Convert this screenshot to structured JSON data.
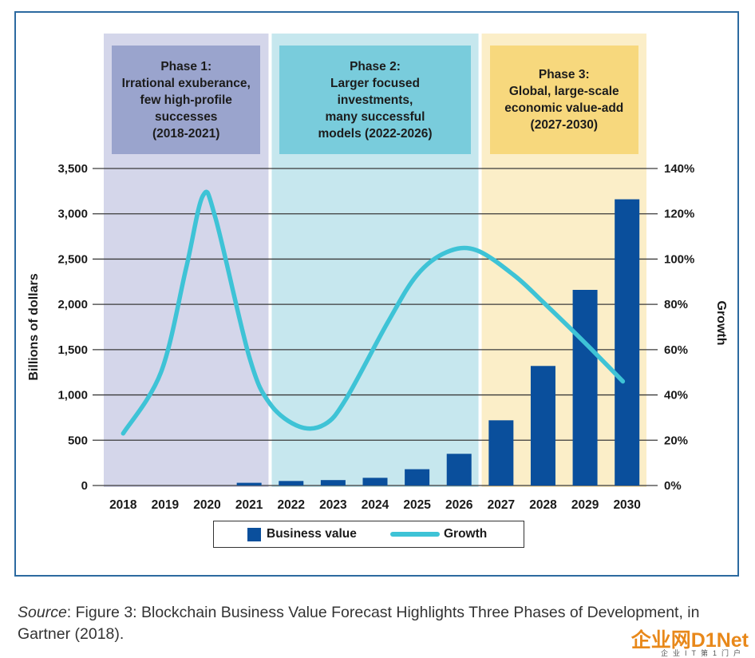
{
  "chart_data": {
    "type": "bar",
    "categories": [
      "2018",
      "2019",
      "2020",
      "2021",
      "2022",
      "2023",
      "2024",
      "2025",
      "2026",
      "2027",
      "2028",
      "2029",
      "2030"
    ],
    "series": [
      {
        "name": "Business value",
        "type": "bar",
        "axis": "left",
        "values": [
          0,
          0,
          0,
          30,
          50,
          60,
          85,
          180,
          350,
          720,
          1320,
          2160,
          3160
        ]
      },
      {
        "name": "Growth",
        "type": "line",
        "axis": "right",
        "smooth": true,
        "x": [
          2018,
          2018.9,
          2019.5,
          2019.9,
          2020.2,
          2021.0,
          2021.5,
          2022.2,
          2022.8,
          2023.3,
          2024.3,
          2025.0,
          2025.7,
          2026.4,
          2027.3,
          2028.0,
          2029.0,
          2029.9
        ],
        "values": [
          23,
          50,
          96,
          128,
          118,
          57,
          36,
          26,
          27,
          38,
          72,
          93,
          103,
          104,
          93,
          81,
          63,
          46
        ]
      }
    ],
    "ylabel": "Billions of dollars",
    "ylim": [
      0,
      3500
    ],
    "yticks": [
      "0",
      "500",
      "1,000",
      "1,500",
      "2,000",
      "2,500",
      "3,000",
      "3,500"
    ],
    "y2label": "Growth",
    "y2lim": [
      0,
      140
    ],
    "y2ticks": [
      "0%",
      "20%",
      "40%",
      "60%",
      "80%",
      "100%",
      "120%",
      "140%"
    ],
    "grid": true,
    "legend_position": "bottom",
    "phases": [
      {
        "title": "Phase 1:",
        "lines": [
          "Irrational exuberance,",
          "few high-profile",
          "successes",
          "(2018-2021)"
        ],
        "years": [
          "2018",
          "2021"
        ],
        "bg": "#d4d6ea",
        "box": "#9aa4cd"
      },
      {
        "title": "Phase 2:",
        "lines": [
          "Larger focused",
          "investments,",
          "many successful",
          "models (2022-2026)"
        ],
        "years": [
          "2022",
          "2026"
        ],
        "bg": "#c6e7ee",
        "box": "#79ccdc"
      },
      {
        "title": "Phase 3:",
        "lines": [
          "Global, large-scale",
          "economic value-add",
          "(2027-2030)"
        ],
        "years": [
          "2027",
          "2030"
        ],
        "bg": "#fbeec8",
        "box": "#f7d87d"
      }
    ]
  },
  "legend": {
    "bar_label": "Business value",
    "line_label": "Growth"
  },
  "caption": {
    "source_label": "Source",
    "text": ": Figure 3: Blockchain Business Value Forecast Highlights Three Phases of Development, in Gartner (2018)."
  },
  "watermark": {
    "main": "企业网D1Net",
    "sub": "企业IT第1门户"
  },
  "colors": {
    "bar": "#0a4f9c",
    "line": "#3ec3d6",
    "frame": "#2c6aa0"
  }
}
